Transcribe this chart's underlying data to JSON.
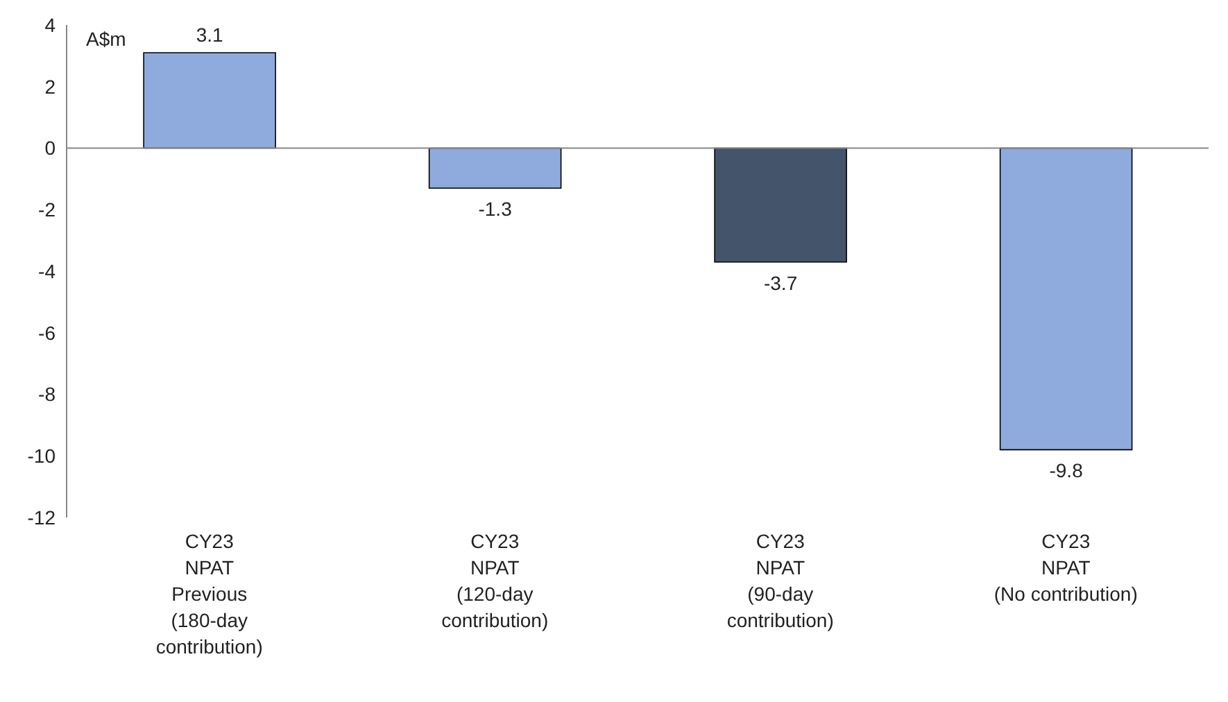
{
  "chart_data": {
    "type": "bar",
    "ylabel": "A$m",
    "categories": [
      "CY23\nNPAT\nPrevious\n(180-day\ncontribution)",
      "CY23\nNPAT\n(120-day\ncontribution)",
      "CY23\nNPAT\n(90-day\ncontribution)",
      "CY23\nNPAT\n(No contribution)"
    ],
    "values": [
      3.1,
      -1.3,
      -3.7,
      -9.8
    ],
    "colors": [
      "#8faadc",
      "#8faadc",
      "#44546a",
      "#8faadc"
    ],
    "ylim": [
      -12,
      4
    ],
    "yticks": [
      -12,
      -10,
      -8,
      -6,
      -4,
      -2,
      0,
      2,
      4
    ],
    "data_labels": true
  }
}
